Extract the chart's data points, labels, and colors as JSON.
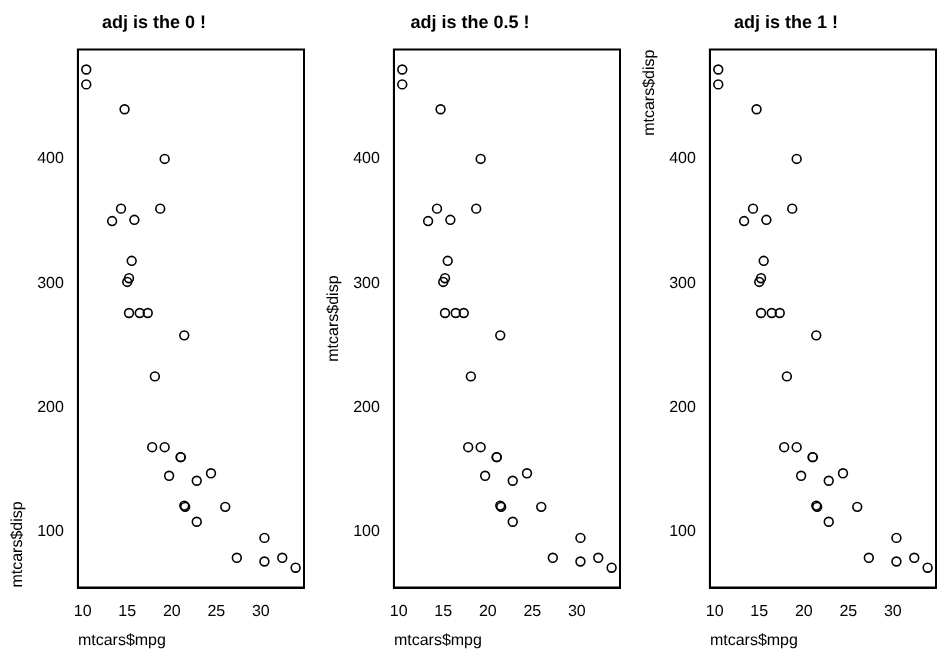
{
  "chart_data": [
    {
      "type": "scatter",
      "title": "adj is the 0 !",
      "xlabel": "mtcars$mpg",
      "ylabel": "mtcars$disp",
      "marker": "circle",
      "xlim": [
        9.46,
        34.84
      ],
      "ylim": [
        55,
        488
      ],
      "xticks": [
        10,
        15,
        20,
        25,
        30
      ],
      "yticks": [
        100,
        200,
        300,
        400
      ],
      "series": [
        {
          "color": "#000000",
          "x": [
            21,
            21,
            22.8,
            21.4,
            18.7,
            18.1,
            14.3,
            24.4,
            22.8,
            19.2,
            17.8,
            16.4,
            17.3,
            15.2,
            10.4,
            10.4,
            14.7,
            32.4,
            30.4,
            33.9,
            21.5,
            15.5,
            15.2,
            13.3,
            19.2,
            27.3,
            26,
            30.4,
            15.8,
            19.7,
            15,
            21.4
          ],
          "values": [
            160,
            160,
            108,
            258,
            360,
            225,
            360,
            147,
            141,
            168,
            168,
            276,
            276,
            276,
            472,
            460,
            440,
            79,
            76,
            71,
            120,
            318,
            304,
            350,
            400,
            79,
            120,
            95,
            351,
            145,
            301,
            121
          ]
        }
      ]
    },
    {
      "type": "scatter",
      "title": "adj is the 0.5 !",
      "xlabel": "mtcars$mpg",
      "ylabel": "mtcars$disp",
      "marker": "circle",
      "xlim": [
        9.46,
        34.84
      ],
      "ylim": [
        55,
        488
      ],
      "xticks": [
        10,
        15,
        20,
        25,
        30
      ],
      "yticks": [
        100,
        200,
        300,
        400
      ],
      "series": [
        {
          "color": "#000000",
          "x": [
            21,
            21,
            22.8,
            21.4,
            18.7,
            18.1,
            14.3,
            24.4,
            22.8,
            19.2,
            17.8,
            16.4,
            17.3,
            15.2,
            10.4,
            10.4,
            14.7,
            32.4,
            30.4,
            33.9,
            21.5,
            15.5,
            15.2,
            13.3,
            19.2,
            27.3,
            26,
            30.4,
            15.8,
            19.7,
            15,
            21.4
          ],
          "values": [
            160,
            160,
            108,
            258,
            360,
            225,
            360,
            147,
            141,
            168,
            168,
            276,
            276,
            276,
            472,
            460,
            440,
            79,
            76,
            71,
            120,
            318,
            304,
            350,
            400,
            79,
            120,
            95,
            351,
            145,
            301,
            121
          ]
        }
      ]
    },
    {
      "type": "scatter",
      "title": "adj is the 1 !",
      "xlabel": "mtcars$mpg",
      "ylabel": "mtcars$disp",
      "marker": "circle",
      "xlim": [
        9.46,
        34.84
      ],
      "ylim": [
        55,
        488
      ],
      "xticks": [
        10,
        15,
        20,
        25,
        30
      ],
      "yticks": [
        100,
        200,
        300,
        400
      ],
      "series": [
        {
          "color": "#000000",
          "x": [
            21,
            21,
            22.8,
            21.4,
            18.7,
            18.1,
            14.3,
            24.4,
            22.8,
            19.2,
            17.8,
            16.4,
            17.3,
            15.2,
            10.4,
            10.4,
            14.7,
            32.4,
            30.4,
            33.9,
            21.5,
            15.5,
            15.2,
            13.3,
            19.2,
            27.3,
            26,
            30.4,
            15.8,
            19.7,
            15,
            21.4
          ],
          "values": [
            160,
            160,
            108,
            258,
            360,
            225,
            360,
            147,
            141,
            168,
            168,
            276,
            276,
            276,
            472,
            460,
            440,
            79,
            76,
            71,
            120,
            318,
            304,
            350,
            400,
            79,
            120,
            95,
            351,
            145,
            301,
            121
          ]
        }
      ]
    }
  ]
}
